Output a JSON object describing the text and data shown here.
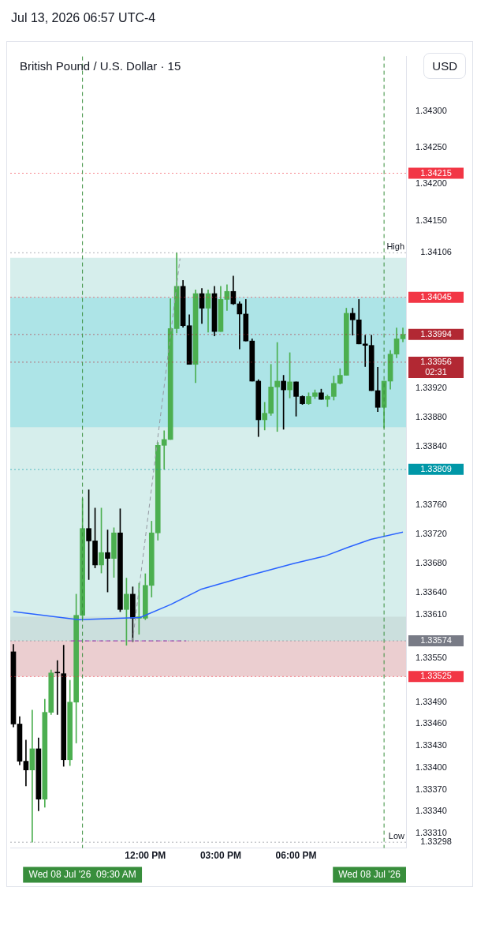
{
  "chart_data": {
    "type": "candlestick",
    "title": "British Pound / U.S. Dollar · 15",
    "subtitle": "Jul 13, 2026 06:57 UTC-4",
    "annotations": [
      "USD"
    ],
    "xlim": [
      6.625,
      22.375
    ],
    "xticks": [
      {
        "value": 12,
        "label": "12:00 PM"
      },
      {
        "value": 15,
        "label": "03:00 PM"
      },
      {
        "value": 18,
        "label": "06:00 PM"
      }
    ],
    "ylim": [
      1.3329,
      1.34375
    ],
    "yticks": [
      {
        "value": 1.343,
        "label": "1.34300"
      },
      {
        "value": 1.3425,
        "label": "1.34250"
      },
      {
        "value": 1.342,
        "label": "1.34200"
      },
      {
        "value": 1.3415,
        "label": "1.34150"
      },
      {
        "value": 1.3392,
        "label": "1.33920"
      },
      {
        "value": 1.3388,
        "label": "1.33880"
      },
      {
        "value": 1.3384,
        "label": "1.33840"
      },
      {
        "value": 1.3376,
        "label": "1.33760"
      },
      {
        "value": 1.3372,
        "label": "1.33720"
      },
      {
        "value": 1.3368,
        "label": "1.33680"
      },
      {
        "value": 1.3364,
        "label": "1.33640"
      },
      {
        "value": 1.3361,
        "label": "1.33610"
      },
      {
        "value": 1.3355,
        "label": "1.33550"
      },
      {
        "value": 1.3349,
        "label": "1.33490"
      },
      {
        "value": 1.3346,
        "label": "1.33460"
      },
      {
        "value": 1.3343,
        "label": "1.33430"
      },
      {
        "value": 1.334,
        "label": "1.33400"
      },
      {
        "value": 1.3337,
        "label": "1.33370"
      },
      {
        "value": 1.3334,
        "label": "1.33340"
      },
      {
        "value": 1.3331,
        "label": "1.33310"
      }
    ],
    "grid": false,
    "legend": false,
    "bands": [
      {
        "axis": "y",
        "from": 1.33574,
        "to": 1.34099,
        "color": "#26a69a"
      },
      {
        "axis": "y",
        "from": 1.33525,
        "to": 1.33574,
        "color": "#f23645"
      },
      {
        "axis": "y",
        "from": 1.33867,
        "to": 1.34045,
        "color": "#00bcd4"
      },
      {
        "axis": "y",
        "from": 1.33525,
        "to": 1.33607,
        "color": "#9e9e9e"
      }
    ],
    "ref_lines": [
      {
        "axis": "y",
        "value": 1.34215,
        "label": "1.34215",
        "color": "#f23645",
        "line_style": "dotted"
      },
      {
        "axis": "y",
        "value": 1.34106,
        "label": "High 1.34106",
        "line_style": "dotted"
      },
      {
        "axis": "y",
        "value": 1.34045,
        "label": "1.34045",
        "color": "#f23645",
        "line_style": "dotted"
      },
      {
        "axis": "y",
        "value": 1.33994,
        "label": "1.33994",
        "color": "#b22833",
        "line_style": "dotted"
      },
      {
        "axis": "y",
        "value": 1.33956,
        "label": "1.33956\n02:31",
        "color": "#b22833",
        "line_style": "dotted"
      },
      {
        "axis": "y",
        "value": 1.33809,
        "label": "1.33809",
        "color": "#0097a7",
        "line_style": "dotted"
      },
      {
        "axis": "y",
        "value": 1.33574,
        "label": "1.33574",
        "color": "#787b86",
        "line_style": "dotted"
      },
      {
        "axis": "y",
        "value": 1.33525,
        "label": "1.33525",
        "color": "#f23645",
        "line_style": "dotted"
      },
      {
        "axis": "y",
        "value": 1.33298,
        "label": "Low 1.33298",
        "line_style": "dotted"
      },
      {
        "axis": "x",
        "value": 9.5,
        "label": "Wed 08 Jul '26  09:30 AM",
        "color": "#388e3c",
        "line_style": "dashed"
      },
      {
        "axis": "x",
        "value": 21.5,
        "label": "Wed 08 Jul '26",
        "color": "#388e3c",
        "line_style": "dashed"
      }
    ],
    "series": [
      {
        "type": "candlestick",
        "x": [
          6.75,
          7,
          7.25,
          7.5,
          7.75,
          8,
          8.25,
          8.5,
          8.75,
          9,
          9.25,
          9.5,
          9.75,
          10,
          10.25,
          10.5,
          10.75,
          11,
          11.25,
          11.5,
          11.75,
          12,
          12.25,
          12.5,
          12.75,
          13,
          13.25,
          13.5,
          13.75,
          14,
          14.25,
          14.5,
          14.75,
          15,
          15.25,
          15.5,
          15.75,
          16,
          16.25,
          16.5,
          16.75,
          17,
          17.25,
          17.5,
          17.75,
          18,
          18.25,
          18.5,
          18.75,
          19,
          19.25,
          19.5,
          19.75,
          20,
          20.25,
          20.5,
          20.75,
          21,
          21.25,
          21.5,
          21.75,
          22,
          22.25
        ],
        "ohlc": [
          [
            1.33559,
            1.33569,
            1.33456,
            1.3346
          ],
          [
            1.3346,
            1.3347,
            1.33404,
            1.33409
          ],
          [
            1.33409,
            1.33438,
            1.33375,
            1.33397
          ],
          [
            1.33397,
            1.33479,
            1.33298,
            1.33426
          ],
          [
            1.33426,
            1.33441,
            1.33341,
            1.33357
          ],
          [
            1.33357,
            1.33494,
            1.33346,
            1.33476
          ],
          [
            1.33476,
            1.33534,
            1.33473,
            1.3353
          ],
          [
            1.33531,
            1.33547,
            1.33473,
            1.3353
          ],
          [
            1.33529,
            1.33568,
            1.33402,
            1.33411
          ],
          [
            1.33411,
            1.3352,
            1.33403,
            1.3349
          ],
          [
            1.3349,
            1.33638,
            1.33434,
            1.33609
          ],
          [
            1.33609,
            1.33769,
            1.33605,
            1.33728
          ],
          [
            1.33728,
            1.33781,
            1.33658,
            1.33711
          ],
          [
            1.33711,
            1.33756,
            1.33674,
            1.33678
          ],
          [
            1.33678,
            1.33756,
            1.33667,
            1.33695
          ],
          [
            1.33695,
            1.33726,
            1.33641,
            1.33687
          ],
          [
            1.33687,
            1.33729,
            1.33661,
            1.33722
          ],
          [
            1.33722,
            1.33755,
            1.33614,
            1.33617
          ],
          [
            1.33617,
            1.3366,
            1.33568,
            1.33638
          ],
          [
            1.33638,
            1.33648,
            1.33573,
            1.33605
          ],
          [
            1.33605,
            1.33653,
            1.33583,
            1.33607
          ],
          [
            1.33605,
            1.33666,
            1.33603,
            1.3365
          ],
          [
            1.3365,
            1.33738,
            1.33634,
            1.33722
          ],
          [
            1.33722,
            1.33846,
            1.33712,
            1.33842
          ],
          [
            1.33842,
            1.33862,
            1.33809,
            1.3385
          ],
          [
            1.3385,
            1.34043,
            1.3385,
            1.34002
          ],
          [
            1.34002,
            1.34106,
            1.33996,
            1.3406
          ],
          [
            1.3406,
            1.34068,
            1.34004,
            1.34006
          ],
          [
            1.34006,
            1.34021,
            1.33953,
            1.33953
          ],
          [
            1.33953,
            1.34055,
            1.33928,
            1.3405
          ],
          [
            1.3405,
            1.34057,
            1.34009,
            1.3403
          ],
          [
            1.3403,
            1.34055,
            1.33997,
            1.3405
          ],
          [
            1.3405,
            1.3406,
            1.33992,
            1.33998
          ],
          [
            1.33998,
            1.3406,
            1.33998,
            1.34042
          ],
          [
            1.34042,
            1.34062,
            1.34027,
            1.34053
          ],
          [
            1.34053,
            1.34074,
            1.34035,
            1.34036
          ],
          [
            1.34036,
            1.34039,
            1.33974,
            1.34022
          ],
          [
            1.34022,
            1.34042,
            1.33985,
            1.33985
          ],
          [
            1.33985,
            1.33988,
            1.3393,
            1.3393
          ],
          [
            1.3393,
            1.33932,
            1.33854,
            1.33877
          ],
          [
            1.33877,
            1.33901,
            1.33863,
            1.33886
          ],
          [
            1.33886,
            1.33953,
            1.33883,
            1.33922
          ],
          [
            1.33922,
            1.33983,
            1.33861,
            1.3393
          ],
          [
            1.3393,
            1.33938,
            1.33864,
            1.33918
          ],
          [
            1.33918,
            1.33969,
            1.33907,
            1.33929
          ],
          [
            1.33929,
            1.33929,
            1.33882,
            1.33909
          ],
          [
            1.33909,
            1.3391,
            1.33898,
            1.33899
          ],
          [
            1.33899,
            1.33914,
            1.33898,
            1.33909
          ],
          [
            1.33909,
            1.33918,
            1.33906,
            1.33914
          ],
          [
            1.33914,
            1.33919,
            1.33905,
            1.33905
          ],
          [
            1.33905,
            1.33911,
            1.33895,
            1.33909
          ],
          [
            1.33909,
            1.33937,
            1.33904,
            1.33927
          ],
          [
            1.33927,
            1.33947,
            1.33926,
            1.33938
          ],
          [
            1.33938,
            1.3403,
            1.33938,
            1.34023
          ],
          [
            1.34023,
            1.3403,
            1.33993,
            1.34014
          ],
          [
            1.34014,
            1.34042,
            1.33981,
            1.33981
          ],
          [
            1.33981,
            1.33993,
            1.3395,
            1.33979
          ],
          [
            1.33979,
            1.33993,
            1.33917,
            1.33917
          ],
          [
            1.33917,
            1.33949,
            1.33888,
            1.33894
          ],
          [
            1.33894,
            1.3393,
            1.33866,
            1.3393
          ],
          [
            1.3393,
            1.33972,
            1.33919,
            1.33967
          ],
          [
            1.33967,
            1.34003,
            1.33962,
            1.33988
          ],
          [
            1.33988,
            1.34003,
            1.33984,
            1.33994
          ]
        ],
        "colors": [
          "#000000",
          "#000000",
          "#000000",
          "#4caf50",
          "#000000",
          "#4caf50",
          "#4caf50",
          "#000000",
          "#000000",
          "#4caf50",
          "#4caf50",
          "#4caf50",
          "#000000",
          "#000000",
          "#4caf50",
          "#000000",
          "#4caf50",
          "#000000",
          "#4caf50",
          "#000000",
          "#4caf50",
          "#4caf50",
          "#4caf50",
          "#4caf50",
          "#4caf50",
          "#4caf50",
          "#4caf50",
          "#000000",
          "#000000",
          "#4caf50",
          "#000000",
          "#4caf50",
          "#000000",
          "#4caf50",
          "#4caf50",
          "#000000",
          "#000000",
          "#000000",
          "#000000",
          "#000000",
          "#4caf50",
          "#4caf50",
          "#4caf50",
          "#000000",
          "#4caf50",
          "#000000",
          "#000000",
          "#4caf50",
          "#4caf50",
          "#000000",
          "#4caf50",
          "#4caf50",
          "#4caf50",
          "#4caf50",
          "#000000",
          "#000000",
          "#000000",
          "#000000",
          "#000000",
          "#4caf50",
          "#4caf50",
          "#4caf50",
          "#4caf50"
        ]
      },
      {
        "type": "line",
        "color": "#2962ff",
        "x": [
          6.75,
          9.35,
          11.79,
          13.02,
          14.24,
          16.07,
          17.91,
          19.13,
          20.05,
          20.97,
          22.25
        ],
        "values": [
          1.33614,
          1.33603,
          1.33606,
          1.33624,
          1.33645,
          1.33663,
          1.3368,
          1.3369,
          1.33702,
          1.33713,
          1.33723
        ]
      },
      {
        "type": "line",
        "color": "#9598a1",
        "line_style": "dashed",
        "x": [
          11.49,
          13.38
        ],
        "values": [
          1.33573,
          1.34098
        ]
      },
      {
        "type": "line",
        "color": "#9c27b0",
        "line_style": "dashed",
        "x": [
          9.04,
          13.63
        ],
        "values": [
          1.33574,
          1.33574
        ]
      }
    ]
  }
}
